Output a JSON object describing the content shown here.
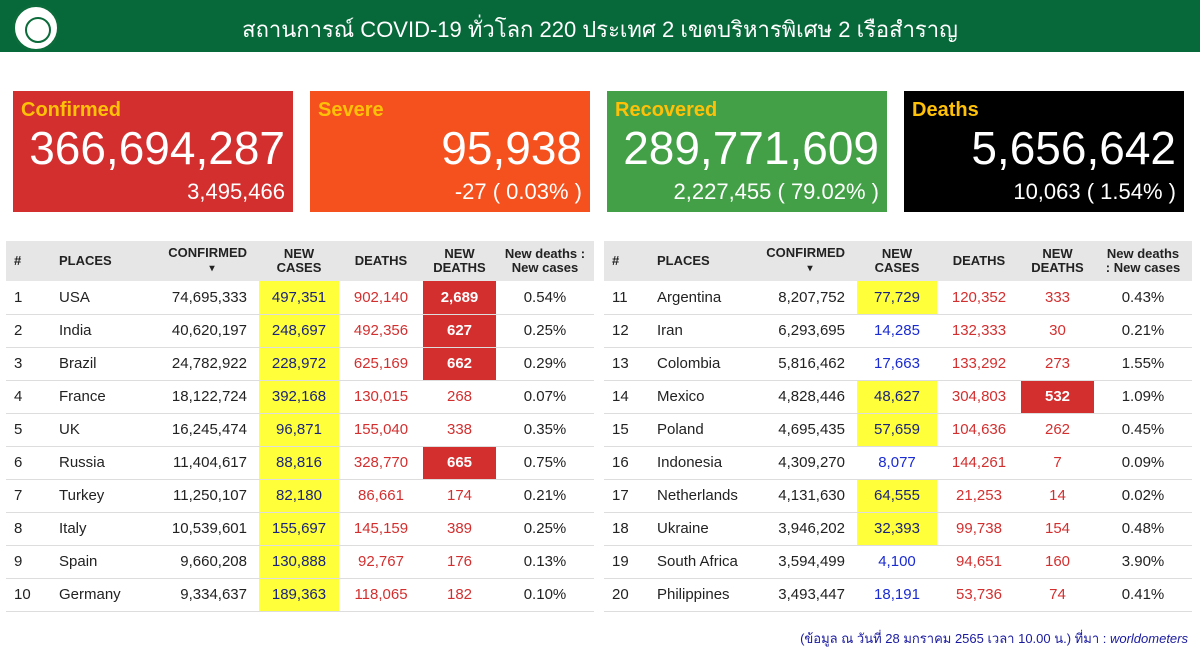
{
  "header": {
    "title": "สถานการณ์ COVID-19 ทั่วโลก 220 ประเทศ 2 เขตบริหารพิเศษ 2 เรือสำราญ"
  },
  "cards": [
    {
      "label": "Confirmed",
      "value": "366,694,287",
      "sub": "3,495,466",
      "color": "#d32f2f"
    },
    {
      "label": "Severe",
      "value": "95,938",
      "sub": "-27 ( 0.03% )",
      "color": "#f4511e"
    },
    {
      "label": "Recovered",
      "value": "289,771,609",
      "sub": "2,227,455 ( 79.02% )",
      "color": "#43a047"
    },
    {
      "label": "Deaths",
      "value": "5,656,642",
      "sub": "10,063 ( 1.54% )",
      "color": "#000000"
    }
  ],
  "table_headers": {
    "num": "#",
    "places": "PLACES",
    "confirmed": "CONFIRMED",
    "sort": "▾",
    "new_cases_1": "NEW",
    "new_cases_2": "CASES",
    "deaths": "DEATHS",
    "new_deaths_1": "NEW",
    "new_deaths_2": "DEATHS",
    "ratio_left_1": "New deaths :",
    "ratio_left_2": "New cases",
    "ratio_right_1": "New deaths",
    "ratio_right_2": ": New cases"
  },
  "rows": [
    {
      "n": "1",
      "place": "USA",
      "confirmed": "74,695,333",
      "new_cases": "497,351",
      "nc_hl": true,
      "deaths": "902,140",
      "new_deaths": "2,689",
      "nd_hl": true,
      "ratio": "0.54%"
    },
    {
      "n": "2",
      "place": "India",
      "confirmed": "40,620,197",
      "new_cases": "248,697",
      "nc_hl": true,
      "deaths": "492,356",
      "new_deaths": "627",
      "nd_hl": true,
      "ratio": "0.25%"
    },
    {
      "n": "3",
      "place": "Brazil",
      "confirmed": "24,782,922",
      "new_cases": "228,972",
      "nc_hl": true,
      "deaths": "625,169",
      "new_deaths": "662",
      "nd_hl": true,
      "ratio": "0.29%"
    },
    {
      "n": "4",
      "place": "France",
      "confirmed": "18,122,724",
      "new_cases": "392,168",
      "nc_hl": true,
      "deaths": "130,015",
      "new_deaths": "268",
      "nd_hl": false,
      "ratio": "0.07%"
    },
    {
      "n": "5",
      "place": "UK",
      "confirmed": "16,245,474",
      "new_cases": "96,871",
      "nc_hl": true,
      "deaths": "155,040",
      "new_deaths": "338",
      "nd_hl": false,
      "ratio": "0.35%"
    },
    {
      "n": "6",
      "place": "Russia",
      "confirmed": "11,404,617",
      "new_cases": "88,816",
      "nc_hl": true,
      "deaths": "328,770",
      "new_deaths": "665",
      "nd_hl": true,
      "ratio": "0.75%"
    },
    {
      "n": "7",
      "place": "Turkey",
      "confirmed": "11,250,107",
      "new_cases": "82,180",
      "nc_hl": true,
      "deaths": "86,661",
      "new_deaths": "174",
      "nd_hl": false,
      "ratio": "0.21%"
    },
    {
      "n": "8",
      "place": "Italy",
      "confirmed": "10,539,601",
      "new_cases": "155,697",
      "nc_hl": true,
      "deaths": "145,159",
      "new_deaths": "389",
      "nd_hl": false,
      "ratio": "0.25%"
    },
    {
      "n": "9",
      "place": "Spain",
      "confirmed": "9,660,208",
      "new_cases": "130,888",
      "nc_hl": true,
      "deaths": "92,767",
      "new_deaths": "176",
      "nd_hl": false,
      "ratio": "0.13%"
    },
    {
      "n": "10",
      "place": "Germany",
      "confirmed": "9,334,637",
      "new_cases": "189,363",
      "nc_hl": true,
      "deaths": "118,065",
      "new_deaths": "182",
      "nd_hl": false,
      "ratio": "0.10%"
    },
    {
      "n": "11",
      "place": "Argentina",
      "confirmed": "8,207,752",
      "new_cases": "77,729",
      "nc_hl": true,
      "deaths": "120,352",
      "new_deaths": "333",
      "nd_hl": false,
      "ratio": "0.43%"
    },
    {
      "n": "12",
      "place": "Iran",
      "confirmed": "6,293,695",
      "new_cases": "14,285",
      "nc_hl": false,
      "deaths": "132,333",
      "new_deaths": "30",
      "nd_hl": false,
      "ratio": "0.21%"
    },
    {
      "n": "13",
      "place": "Colombia",
      "confirmed": "5,816,462",
      "new_cases": "17,663",
      "nc_hl": false,
      "deaths": "133,292",
      "new_deaths": "273",
      "nd_hl": false,
      "ratio": "1.55%"
    },
    {
      "n": "14",
      "place": "Mexico",
      "confirmed": "4,828,446",
      "new_cases": "48,627",
      "nc_hl": true,
      "deaths": "304,803",
      "new_deaths": "532",
      "nd_hl": true,
      "ratio": "1.09%"
    },
    {
      "n": "15",
      "place": "Poland",
      "confirmed": "4,695,435",
      "new_cases": "57,659",
      "nc_hl": true,
      "deaths": "104,636",
      "new_deaths": "262",
      "nd_hl": false,
      "ratio": "0.45%"
    },
    {
      "n": "16",
      "place": "Indonesia",
      "confirmed": "4,309,270",
      "new_cases": "8,077",
      "nc_hl": false,
      "deaths": "144,261",
      "new_deaths": "7",
      "nd_hl": false,
      "ratio": "0.09%"
    },
    {
      "n": "17",
      "place": "Netherlands",
      "confirmed": "4,131,630",
      "new_cases": "64,555",
      "nc_hl": true,
      "deaths": "21,253",
      "new_deaths": "14",
      "nd_hl": false,
      "ratio": "0.02%"
    },
    {
      "n": "18",
      "place": "Ukraine",
      "confirmed": "3,946,202",
      "new_cases": "32,393",
      "nc_hl": true,
      "deaths": "99,738",
      "new_deaths": "154",
      "nd_hl": false,
      "ratio": "0.48%"
    },
    {
      "n": "19",
      "place": "South Africa",
      "confirmed": "3,594,499",
      "new_cases": "4,100",
      "nc_hl": false,
      "deaths": "94,651",
      "new_deaths": "160",
      "nd_hl": false,
      "ratio": "3.90%"
    },
    {
      "n": "20",
      "place": "Philippines",
      "confirmed": "3,493,447",
      "new_cases": "18,191",
      "nc_hl": false,
      "deaths": "53,736",
      "new_deaths": "74",
      "nd_hl": false,
      "ratio": "0.41%"
    }
  ],
  "footer": {
    "text": "(ข้อมูล ณ วันที่ 28 มกราคม 2565 เวลา 10.00 น.) ที่มา : ",
    "source": "worldometers"
  }
}
